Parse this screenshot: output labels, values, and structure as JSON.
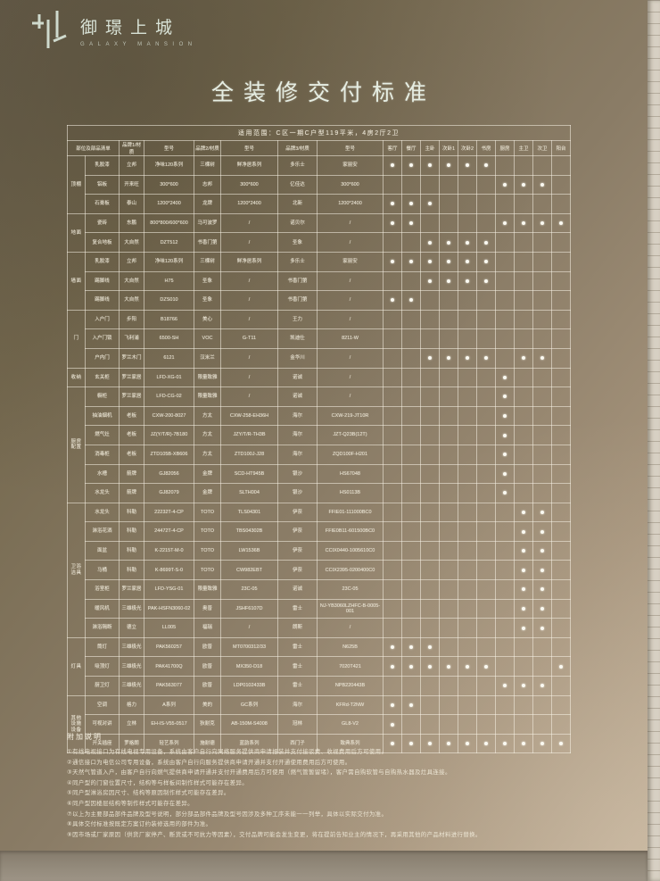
{
  "logo": {
    "name": "御璟上城",
    "subtitle": "GALAXY MANSION"
  },
  "title": "全装修交付标准",
  "colors": {
    "board_dark": "#6b614d",
    "board_light": "#c1af97",
    "grid_line": "#f3efe2",
    "text": "#ede7d6",
    "wall": "#d7d0c3",
    "dot": "#fbfaf2"
  },
  "table": {
    "scope": "适用范围：C区一期C户型119平米，4房2厅2卫",
    "headers": [
      "部位及部品清单",
      "品牌1/材质",
      "型号",
      "品牌2/材质",
      "型号",
      "品牌3/材质",
      "型号"
    ],
    "rooms": [
      "客厅",
      "餐厅",
      "主卧",
      "次卧1",
      "次卧2",
      "书房",
      "厨房",
      "主卫",
      "次卫",
      "阳台"
    ],
    "groups": [
      {
        "name": "顶棚",
        "rows": [
          {
            "item": "乳胶漆",
            "b1": "立邦",
            "m1": "净味120系列",
            "b2": "三棵树",
            "m2": "鲜净居系列",
            "b3": "多乐士",
            "m3": "家丽安",
            "dots": [
              1,
              1,
              1,
              1,
              1,
              1,
              0,
              0,
              0,
              0
            ]
          },
          {
            "item": "铝板",
            "b1": "开来旺",
            "m1": "300*600",
            "b2": "志邦",
            "m2": "300*600",
            "b3": "亿佳达",
            "m3": "300*600",
            "dots": [
              0,
              0,
              0,
              0,
              0,
              0,
              1,
              1,
              1,
              0
            ]
          },
          {
            "item": "石膏板",
            "b1": "泰山",
            "m1": "1200*2400",
            "b2": "龙牌",
            "m2": "1200*2400",
            "b3": "北新",
            "m3": "1200*2400",
            "dots": [
              1,
              1,
              1,
              0,
              0,
              0,
              0,
              0,
              0,
              0
            ]
          }
        ]
      },
      {
        "name": "地面",
        "rows": [
          {
            "item": "瓷砖",
            "b1": "东鹏",
            "m1": "800*800/600*600",
            "b2": "马可波罗",
            "m2": "/",
            "b3": "诺贝尔",
            "m3": "/",
            "dots": [
              1,
              1,
              0,
              0,
              0,
              0,
              1,
              1,
              1,
              1
            ]
          },
          {
            "item": "复合地板",
            "b1": "大自然",
            "m1": "DZT512",
            "b2": "书香门第",
            "m2": "/",
            "b3": "圣象",
            "m3": "/",
            "dots": [
              0,
              0,
              1,
              1,
              1,
              1,
              0,
              0,
              0,
              0
            ]
          }
        ]
      },
      {
        "name": "墙面",
        "rows": [
          {
            "item": "乳胶漆",
            "b1": "立邦",
            "m1": "净味120系列",
            "b2": "三棵树",
            "m2": "鲜净居系列",
            "b3": "多乐士",
            "m3": "家丽安",
            "dots": [
              1,
              1,
              1,
              1,
              1,
              1,
              0,
              0,
              0,
              0
            ]
          },
          {
            "item": "踢脚线",
            "b1": "大自然",
            "m1": "H75",
            "b2": "圣象",
            "m2": "/",
            "b3": "书香门第",
            "m3": "/",
            "dots": [
              0,
              0,
              1,
              1,
              1,
              1,
              0,
              0,
              0,
              0
            ]
          },
          {
            "item": "踢脚线",
            "b1": "大自然",
            "m1": "DZS010",
            "b2": "圣象",
            "m2": "/",
            "b3": "书香门第",
            "m3": "/",
            "dots": [
              1,
              1,
              0,
              0,
              0,
              0,
              0,
              0,
              0,
              0
            ]
          }
        ]
      },
      {
        "name": "门",
        "rows": [
          {
            "item": "入户门",
            "b1": "步阳",
            "m1": "B18766",
            "b2": "美心",
            "m2": "/",
            "b3": "王力",
            "m3": "/",
            "dots": [
              0,
              0,
              0,
              0,
              0,
              0,
              0,
              0,
              0,
              0
            ]
          },
          {
            "item": "入户门锁",
            "b1": "飞利浦",
            "m1": "6500-SH",
            "b2": "VOC",
            "m2": "G-T11",
            "b3": "凯迪仕",
            "m3": "8211-W",
            "dots": [
              0,
              0,
              0,
              0,
              0,
              0,
              0,
              0,
              0,
              0
            ]
          },
          {
            "item": "户内门",
            "b1": "罗兰木门",
            "m1": "6121",
            "b2": "汉米兰",
            "m2": "/",
            "b3": "金华川",
            "m3": "/",
            "dots": [
              0,
              0,
              1,
              1,
              1,
              1,
              0,
              1,
              1,
              0
            ]
          }
        ]
      },
      {
        "name": "收纳",
        "rows": [
          {
            "item": "玄关柜",
            "b1": "罗兰家居",
            "m1": "LFD-XG-01",
            "b2": "限量致雅",
            "m2": "/",
            "b3": "诺诚",
            "m3": "/",
            "dots": [
              0,
              0,
              0,
              0,
              0,
              0,
              1,
              0,
              0,
              0
            ]
          }
        ]
      },
      {
        "name": "厨房配置",
        "rows": [
          {
            "item": "橱柜",
            "b1": "罗兰家居",
            "m1": "LFD-CG-02",
            "b2": "限量致雅",
            "m2": "/",
            "b3": "诺诚",
            "m3": "/",
            "dots": [
              0,
              0,
              0,
              0,
              0,
              0,
              1,
              0,
              0,
              0
            ]
          },
          {
            "item": "抽油烟机",
            "b1": "老板",
            "m1": "CXW-200-8027",
            "b2": "方太",
            "m2": "CXW-258-EH36H",
            "b3": "海尔",
            "m3": "CXW-219-JT10R",
            "dots": [
              0,
              0,
              0,
              0,
              0,
              0,
              1,
              0,
              0,
              0
            ]
          },
          {
            "item": "燃气灶",
            "b1": "老板",
            "m1": "JZ(Y/T/R)-7B180",
            "b2": "方太",
            "m2": "JZY/T/R-TH3B",
            "b3": "海尔",
            "m3": "JZT-Q23B(12T)",
            "dots": [
              0,
              0,
              0,
              0,
              0,
              0,
              1,
              0,
              0,
              0
            ]
          },
          {
            "item": "消毒柜",
            "b1": "老板",
            "m1": "ZTD105B-XB606",
            "b2": "方太",
            "m2": "ZTD100J-J28",
            "b3": "海尔",
            "m3": "ZQD100F-H201",
            "dots": [
              0,
              0,
              0,
              0,
              0,
              0,
              1,
              0,
              0,
              0
            ]
          },
          {
            "item": "水槽",
            "b1": "箭牌",
            "m1": "GJ82056",
            "b2": "金牌",
            "m2": "SCD-HT945B",
            "b3": "银沙",
            "m3": "HS67048",
            "dots": [
              0,
              0,
              0,
              0,
              0,
              0,
              1,
              0,
              0,
              0
            ]
          },
          {
            "item": "水龙头",
            "b1": "箭牌",
            "m1": "GJ82079",
            "b2": "金牌",
            "m2": "SLTH004",
            "b3": "银沙",
            "m3": "HS0113B",
            "dots": [
              0,
              0,
              0,
              0,
              0,
              0,
              1,
              0,
              0,
              0
            ]
          }
        ]
      },
      {
        "name": "卫浴洁具",
        "rows": [
          {
            "item": "水龙头",
            "b1": "科勒",
            "m1": "22232T-4-CP",
            "b2": "TOTO",
            "m2": "TLS04301",
            "b3": "伊奈",
            "m3": "FFIE01-111000BC0",
            "dots": [
              0,
              0,
              0,
              0,
              0,
              0,
              0,
              1,
              1,
              0
            ]
          },
          {
            "item": "淋浴花洒",
            "b1": "科勒",
            "m1": "24472T-4-CP",
            "b2": "TOTO",
            "m2": "TBS04302B",
            "b3": "伊奈",
            "m3": "FFIE0B11-601500BC0",
            "dots": [
              0,
              0,
              0,
              0,
              0,
              0,
              0,
              1,
              1,
              0
            ]
          },
          {
            "item": "面盆",
            "b1": "科勒",
            "m1": "K-2215T-M-0",
            "b2": "TOTO",
            "m2": "LW1536B",
            "b3": "伊奈",
            "m3": "CCIX0440-1005610C0",
            "dots": [
              0,
              0,
              0,
              0,
              0,
              0,
              0,
              1,
              1,
              0
            ]
          },
          {
            "item": "马桶",
            "b1": "科勒",
            "m1": "K-8699T-S-0",
            "b2": "TOTO",
            "m2": "CW982EBT",
            "b3": "伊奈",
            "m3": "CCIX2395-0200400C0",
            "dots": [
              0,
              0,
              0,
              0,
              0,
              0,
              0,
              1,
              1,
              0
            ]
          },
          {
            "item": "浴室柜",
            "b1": "罗兰家居",
            "m1": "LFD-YSG-01",
            "b2": "限量致雅",
            "m2": "23C-05",
            "b3": "诺诚",
            "m3": "23C-05",
            "dots": [
              0,
              0,
              0,
              0,
              0,
              0,
              0,
              1,
              1,
              0
            ]
          },
          {
            "item": "暖风机",
            "b1": "三雄极光",
            "m1": "PAK-HSFN3060-02",
            "b2": "奥普",
            "m2": "JSHF6107D",
            "b3": "雷士",
            "m3": "NJ-YB3060LZHFC-B-0005-001",
            "dots": [
              0,
              0,
              0,
              0,
              0,
              0,
              0,
              1,
              1,
              0
            ]
          },
          {
            "item": "淋浴隔断",
            "b1": "德立",
            "m1": "LL005",
            "b2": "福瑞",
            "m2": "/",
            "b3": "朗斯",
            "m3": "/",
            "dots": [
              0,
              0,
              0,
              0,
              0,
              0,
              0,
              1,
              1,
              0
            ]
          }
        ]
      },
      {
        "name": "灯具",
        "rows": [
          {
            "item": "筒灯",
            "b1": "三雄极光",
            "m1": "PAK560257",
            "b2": "欧普",
            "m2": "MT0700312/33",
            "b3": "雷士",
            "m3": "N625B",
            "dots": [
              1,
              1,
              1,
              0,
              0,
              0,
              0,
              0,
              0,
              0
            ]
          },
          {
            "item": "吸顶灯",
            "b1": "三雄极光",
            "m1": "PAK41700Q",
            "b2": "欧普",
            "m2": "MX350-D18",
            "b3": "雷士",
            "m3": "7020T421",
            "dots": [
              1,
              1,
              1,
              1,
              1,
              1,
              0,
              0,
              0,
              1
            ]
          },
          {
            "item": "厨卫灯",
            "b1": "三雄极光",
            "m1": "PAK563077",
            "b2": "欧普",
            "m2": "LDP0102433B",
            "b3": "雷士",
            "m3": "NPB220443B",
            "dots": [
              0,
              0,
              0,
              0,
              0,
              0,
              1,
              1,
              1,
              0
            ]
          }
        ]
      },
      {
        "name": "其他设施设备",
        "rows": [
          {
            "item": "空调",
            "b1": "格力",
            "m1": "A系列",
            "b2": "美的",
            "m2": "GC系列",
            "b3": "海尔",
            "m3": "KFRd-T2NW",
            "dots": [
              1,
              1,
              0,
              0,
              0,
              0,
              0,
              0,
              0,
              0
            ]
          },
          {
            "item": "可视对讲",
            "b1": "立林",
            "m1": "EH-IS-V55-0517",
            "b2": "狄耐克",
            "m2": "AB-150M-S4008",
            "b3": "冠林",
            "m3": "GL8-V2",
            "dots": [
              1,
              0,
              0,
              0,
              0,
              0,
              0,
              0,
              0,
              0
            ]
          },
          {
            "item": "开关插座",
            "b1": "罗格朗",
            "m1": "轻艺系列",
            "b2": "施耐德",
            "m2": "蓝韵系列",
            "b3": "西门子",
            "m3": "致典系列",
            "dots": [
              1,
              1,
              1,
              1,
              1,
              1,
              1,
              1,
              1,
              1
            ]
          }
        ]
      }
    ]
  },
  "notes": {
    "heading": "附加说明",
    "items": [
      "①有线电视接口为有线电视专用设备，系统由客户自行向网络服务提供商申请报装并支付接驳费、收视费用后方可使用。",
      "②通信接口为电信公司专用设备，系统由客户自行向服务提供商申请开通并支付开通使用费用后方可使用。",
      "③天然气管道入户，由客户自行向燃气提供商申请开通并支付开通费用后方可使用（燃气管暂留堵），客户需自购软管与自购热水器及灶具连接。",
      "④同户型的门窗位置尺寸，结构等与样板间制作样式可能存在差异。",
      "⑤同户型淋浴房因尺寸、结构等原因制作样式可能存在差异。",
      "⑥同户型因楼层结构等制作样式可能存在差异。",
      "⑦以上为主要部品部件品牌及型号说明，部分部品部件品牌及型号因涉及多种工序未能一一列举，具体以实际交付为准。",
      "⑧具体交付标准按既定方案订约装修选用的部件为准。",
      "⑨因市场或厂家原因（供货厂家停产、断货或不可抗力等因素），交付品牌可能会发生变更，将在提前告知业主的情况下，再采用其他的产品材料进行替换。"
    ]
  }
}
